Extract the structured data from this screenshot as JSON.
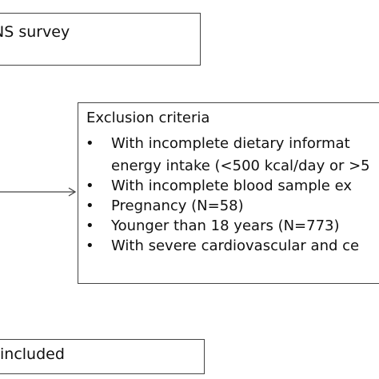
{
  "top_box": {
    "text": "NS survey"
  },
  "exclusion": {
    "heading": "Exclusion criteria",
    "items": [
      {
        "bullet": "•",
        "text": "With incomplete dietary informat"
      },
      {
        "bullet": "",
        "text": "energy intake (<500 kcal/day or >5"
      },
      {
        "bullet": "•",
        "text": "With incomplete blood sample ex"
      },
      {
        "bullet": "•",
        "text": "Pregnancy (N=58)"
      },
      {
        "bullet": "•",
        "text": "Younger than 18 years (N=773)"
      },
      {
        "bullet": "•",
        "text": "With severe cardiovascular and ce"
      }
    ]
  },
  "bottom_box": {
    "text": "included"
  }
}
